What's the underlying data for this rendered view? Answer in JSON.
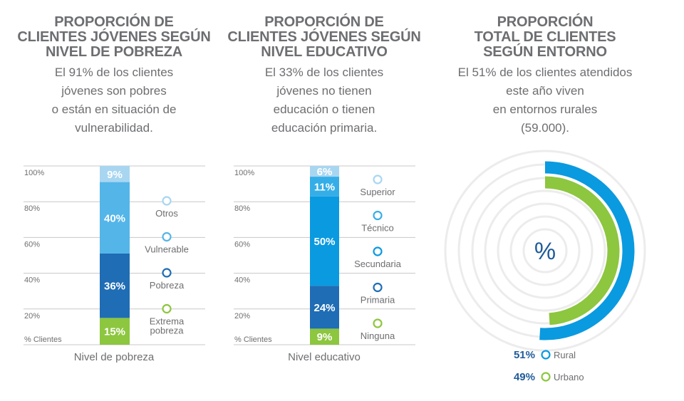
{
  "panels": [
    {
      "title": [
        "PROPORCIÓN DE",
        "CLIENTES JÓVENES SEGÚN",
        "NIVEL DE POBREZA"
      ],
      "description": [
        "El 91% de los clientes",
        "jóvenes son pobres",
        "o están en situación de",
        "vulnerabilidad."
      ]
    },
    {
      "title": [
        "PROPORCIÓN DE",
        "CLIENTES JÓVENES SEGÚN",
        "NIVEL EDUCATIVO"
      ],
      "description": [
        "El 33% de los clientes",
        "jóvenes no tienen",
        "educación o tienen",
        "educación primaria."
      ]
    },
    {
      "title": [
        "PROPORCIÓN",
        "TOTAL DE CLIENTES",
        "SEGÚN ENTORNO"
      ],
      "description": [
        "El 51% de los clientes atendidos",
        "este año viven",
        "en entornos rurales",
        "(59.000)."
      ]
    }
  ],
  "chart_data": [
    {
      "type": "bar",
      "stacked": true,
      "xlabel": "Nivel de pobreza",
      "ylabel": "% Clientes",
      "y_ticks": [
        "100%",
        "80%",
        "60%",
        "40%",
        "20%"
      ],
      "ylim": [
        0,
        100
      ],
      "series": [
        {
          "name": "Extrema pobreza",
          "legend": [
            "Extrema",
            "pobreza"
          ],
          "value": 15,
          "label": "15%",
          "color": "#8dc63f"
        },
        {
          "name": "Pobreza",
          "legend": [
            "Pobreza"
          ],
          "value": 36,
          "label": "36%",
          "color": "#1f6db5"
        },
        {
          "name": "Vulnerable",
          "legend": [
            "Vulnerable"
          ],
          "value": 40,
          "label": "40%",
          "color": "#54b5e9"
        },
        {
          "name": "Otros",
          "legend": [
            "Otros"
          ],
          "value": 9,
          "label": "9%",
          "color": "#a8d6f1"
        }
      ]
    },
    {
      "type": "bar",
      "stacked": true,
      "xlabel": "Nivel educativo",
      "ylabel": "% Clientes",
      "y_ticks": [
        "100%",
        "80%",
        "60%",
        "40%",
        "20%"
      ],
      "ylim": [
        0,
        100
      ],
      "series": [
        {
          "name": "Ninguna",
          "legend": [
            "Ninguna"
          ],
          "value": 9,
          "label": "9%",
          "color": "#8dc63f"
        },
        {
          "name": "Primaria",
          "legend": [
            "Primaria"
          ],
          "value": 24,
          "label": "24%",
          "color": "#1f6db5"
        },
        {
          "name": "Secundaria",
          "legend": [
            "Secundaria"
          ],
          "value": 50,
          "label": "50%",
          "color": "#0a9ae0"
        },
        {
          "name": "Técnico",
          "legend": [
            "Técnico"
          ],
          "value": 11,
          "label": "11%",
          "color": "#35aee8"
        },
        {
          "name": "Superior",
          "legend": [
            "Superior"
          ],
          "value": 6,
          "label": "6%",
          "color": "#a8d6f1"
        }
      ]
    },
    {
      "type": "pie",
      "style": "radial-rings",
      "center_label": "%",
      "series": [
        {
          "name": "Rural",
          "value": 51,
          "label": "51%",
          "color": "#0a9ae0"
        },
        {
          "name": "Urbano",
          "value": 49,
          "label": "49%",
          "color": "#8dc63f"
        }
      ],
      "ring_color": "#ececec"
    }
  ]
}
